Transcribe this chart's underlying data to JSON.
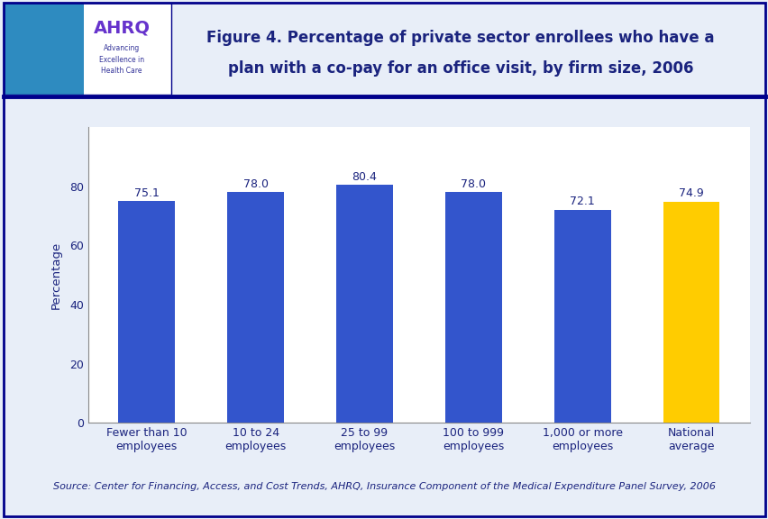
{
  "title_line1": "Figure 4. Percentage of private sector enrollees who have a",
  "title_line2": "plan with a co-pay for an office visit, by firm size, 2006",
  "categories": [
    "Fewer than 10\nemployees",
    "10 to 24\nemployees",
    "25 to 99\nemployees",
    "100 to 999\nemployees",
    "1,000 or more\nemployees",
    "National\naverage"
  ],
  "values": [
    75.1,
    78.0,
    80.4,
    78.0,
    72.1,
    74.9
  ],
  "bar_colors": [
    "#3355cc",
    "#3355cc",
    "#3355cc",
    "#3355cc",
    "#3355cc",
    "#ffcc00"
  ],
  "ylabel": "Percentage",
  "ylim": [
    0,
    100
  ],
  "yticks": [
    0,
    20,
    40,
    60,
    80
  ],
  "source_text": "Source: Center for Financing, Access, and Cost Trends, AHRQ, Insurance Component of the Medical Expenditure Panel Survey, 2006",
  "title_color": "#1a237e",
  "ylabel_color": "#1a237e",
  "tick_color": "#1a237e",
  "bar_label_color": "#1a237e",
  "source_color": "#1a237e",
  "background_color": "#e8eef8",
  "header_bg": "#ffffff",
  "plot_background": "#ffffff",
  "border_color": "#00008b",
  "separator_color": "#00008b",
  "title_fontsize": 12,
  "label_fontsize": 9,
  "ylabel_fontsize": 9.5,
  "source_fontsize": 8,
  "value_fontsize": 9,
  "logo_bg_color": "#2e8bc0",
  "logo_text_color": "#6633cc",
  "logo_subtext_color": "#333399"
}
